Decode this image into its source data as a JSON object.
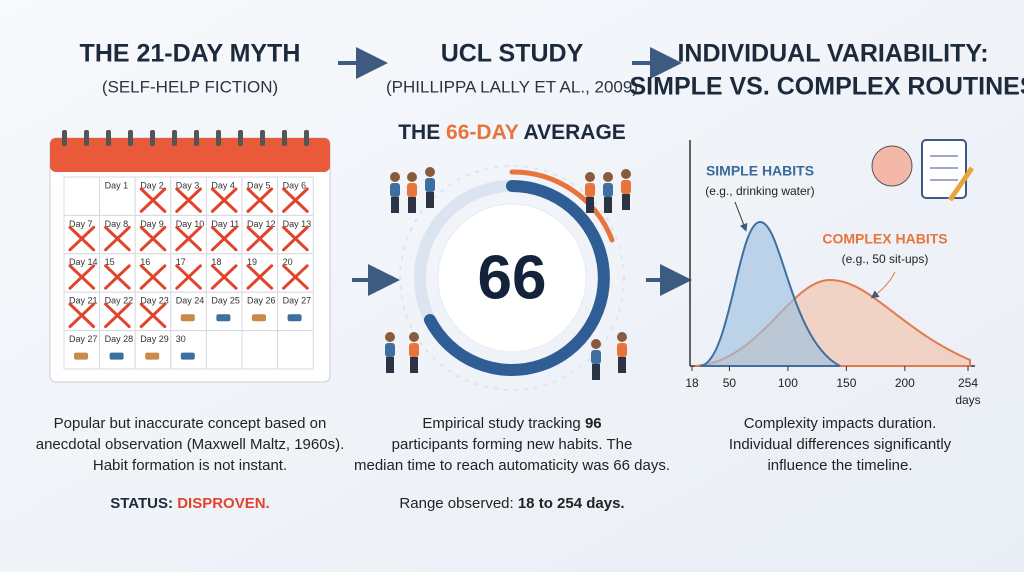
{
  "panels": [
    {
      "title": "THE 21-DAY MYTH",
      "subtitle": "(SELF-HELP FICTION)",
      "calendar": [
        {
          "label": "Day 1",
          "crossed": false
        },
        {
          "label": "Day 2",
          "crossed": true
        },
        {
          "label": "Day 3",
          "crossed": true
        },
        {
          "label": "Day 4",
          "crossed": true
        },
        {
          "label": "Day 5",
          "crossed": true
        },
        {
          "label": "Day 6",
          "crossed": true
        },
        {
          "label": "Day 7",
          "crossed": true
        },
        {
          "label": "Day 8",
          "crossed": true
        },
        {
          "label": "Day 9",
          "crossed": true
        },
        {
          "label": "Day 10",
          "crossed": true
        },
        {
          "label": "Day 11",
          "crossed": true
        },
        {
          "label": "Day 12",
          "crossed": true
        },
        {
          "label": "Day 13",
          "crossed": true
        },
        {
          "label": "Day 14",
          "crossed": true
        },
        {
          "label": "15",
          "crossed": true
        },
        {
          "label": "16",
          "crossed": true
        },
        {
          "label": "17",
          "crossed": true
        },
        {
          "label": "18",
          "crossed": true
        },
        {
          "label": "19",
          "crossed": true
        },
        {
          "label": "20",
          "crossed": true
        },
        {
          "label": "Day 21",
          "crossed": true
        },
        {
          "label": "Day 22",
          "crossed": true
        },
        {
          "label": "Day 23",
          "crossed": true
        },
        {
          "label": "Day 24",
          "crossed": false
        },
        {
          "label": "Day 25",
          "crossed": false
        },
        {
          "label": "Day 26",
          "crossed": false
        },
        {
          "label": "Day 27",
          "crossed": false
        },
        {
          "label": "Day 27",
          "crossed": false
        },
        {
          "label": "Day 28",
          "crossed": false
        },
        {
          "label": "Day 29",
          "crossed": false
        },
        {
          "label": "30",
          "crossed": false
        }
      ],
      "body": [
        "Popular but inaccurate concept based on",
        "anecdotal observation (Maxwell Maltz, 1960s).",
        "Habit formation is not instant."
      ],
      "status_label": "STATUS:",
      "status_value": "DISPROVEN."
    },
    {
      "title": "UCL STUDY",
      "subtitle": "(PHILLIPPA LALLY ET AL., 2009)",
      "headline": [
        "THE",
        "66-DAY",
        "AVERAGE"
      ],
      "center_number": "66",
      "body": [
        [
          "Empirical study tracking",
          "96"
        ],
        [
          "participants forming new habits. The"
        ],
        [
          "median time to reach automaticity was 66 days."
        ]
      ],
      "range_label": "Range observed:",
      "range_value": "18 to 254 days."
    },
    {
      "title": [
        "INDIVIDUAL VARIABILITY:",
        "SIMPLE VS. COMPLEX ROUTINES"
      ],
      "simple": {
        "label": "SIMPLE HABITS",
        "example": "(e.g., drinking water)"
      },
      "complex": {
        "label": "COMPLEX HABITS",
        "example": "(e.g., 50 sit-ups)"
      },
      "xticks": [
        18,
        50,
        100,
        150,
        200,
        254
      ],
      "xlabel": "days",
      "body": [
        "Complexity impacts duration.",
        "Individual differences significantly",
        "influence the timeline."
      ]
    }
  ]
}
